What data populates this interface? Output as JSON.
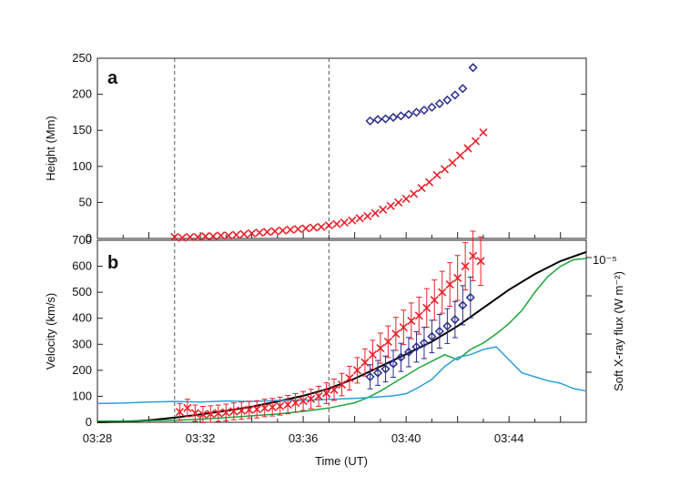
{
  "chart_data": [
    {
      "panel": "a",
      "type": "scatter",
      "xlabel": "",
      "ylabel": "Height (Mm)",
      "xlim_minutes": [
        0,
        19
      ],
      "ylim": [
        0,
        250
      ],
      "yticks": [
        0,
        50,
        100,
        150,
        200,
        250
      ],
      "vertical_dashed_lines": [
        "03:31",
        "03:37"
      ],
      "series": [
        {
          "marker": "x",
          "color": "#e8202a",
          "time": [
            "03:31.0",
            "03:31.3",
            "03:31.6",
            "03:31.9",
            "03:32.2",
            "03:32.5",
            "03:32.8",
            "03:33.1",
            "03:33.4",
            "03:33.7",
            "03:34.0",
            "03:34.3",
            "03:34.6",
            "03:34.9",
            "03:35.2",
            "03:35.5",
            "03:35.8",
            "03:36.1",
            "03:36.4",
            "03:36.7",
            "03:37.0",
            "03:37.3",
            "03:37.6",
            "03:37.9",
            "03:38.2",
            "03:38.5",
            "03:38.8",
            "03:39.1",
            "03:39.4",
            "03:39.7",
            "03:40.0",
            "03:40.3",
            "03:40.6",
            "03:40.9",
            "03:41.2",
            "03:41.5",
            "03:41.8",
            "03:42.1",
            "03:42.4",
            "03:42.7",
            "03:43.0"
          ],
          "values": [
            2,
            1,
            2,
            2,
            3,
            3,
            4,
            4,
            5,
            6,
            7,
            8,
            9,
            10,
            11,
            12,
            13,
            14,
            15,
            16,
            18,
            20,
            22,
            25,
            28,
            31,
            35,
            40,
            45,
            50,
            55,
            62,
            70,
            78,
            88,
            96,
            105,
            115,
            125,
            135,
            147
          ]
        },
        {
          "marker": "diamond",
          "color": "#2b2e8c",
          "time": [
            "03:38.6",
            "03:38.9",
            "03:39.2",
            "03:39.5",
            "03:39.8",
            "03:40.1",
            "03:40.4",
            "03:40.7",
            "03:41.0",
            "03:41.3",
            "03:41.6",
            "03:41.9",
            "03:42.2",
            "03:42.6"
          ],
          "values": [
            163,
            165,
            166,
            168,
            170,
            172,
            175,
            178,
            182,
            187,
            192,
            199,
            208,
            237
          ]
        }
      ]
    },
    {
      "panel": "b",
      "type": "line",
      "xlabel": "Time (UT)",
      "ylabel": "Velocity (km/s)",
      "ylabel_right": "Soft X-ray flux (W m⁻²)",
      "right_axis_label": "10⁻⁵",
      "xticks": [
        "03:28",
        "03:32",
        "03:36",
        "03:40",
        "03:44"
      ],
      "xlim_minutes": [
        0,
        19
      ],
      "ylim": [
        0,
        700
      ],
      "yticks": [
        0,
        100,
        200,
        300,
        400,
        500,
        600,
        700
      ],
      "vertical_dashed_lines": [
        "03:31",
        "03:37"
      ],
      "series": [
        {
          "kind": "line",
          "color": "#000000",
          "time": [
            "03:28",
            "03:29",
            "03:30",
            "03:31",
            "03:32",
            "03:33",
            "03:34",
            "03:35",
            "03:36",
            "03:37",
            "03:38",
            "03:39",
            "03:40",
            "03:41",
            "03:42",
            "03:43",
            "03:44",
            "03:45",
            "03:46",
            "03:47"
          ],
          "values": [
            0,
            2,
            8,
            18,
            30,
            44,
            60,
            80,
            102,
            130,
            168,
            215,
            262,
            310,
            370,
            440,
            510,
            570,
            620,
            655
          ]
        },
        {
          "kind": "line",
          "color": "#1ca63a",
          "time": [
            "03:28",
            "03:29",
            "03:30",
            "03:31",
            "03:32",
            "03:33",
            "03:34",
            "03:35",
            "03:36",
            "03:37",
            "03:38",
            "03:38.5",
            "03:39",
            "03:39.5",
            "03:40",
            "03:40.5",
            "03:41",
            "03:41.5",
            "03:42",
            "03:42.5",
            "03:43",
            "03:43.5",
            "03:44",
            "03:44.5",
            "03:45",
            "03:45.5",
            "03:46",
            "03:46.5",
            "03:47"
          ],
          "values": [
            5,
            5,
            6,
            8,
            12,
            18,
            25,
            32,
            42,
            55,
            75,
            95,
            120,
            150,
            180,
            210,
            235,
            260,
            240,
            280,
            305,
            340,
            380,
            430,
            500,
            560,
            600,
            625,
            630
          ]
        },
        {
          "kind": "line",
          "color": "#2aa0d8",
          "time": [
            "03:28",
            "03:29",
            "03:30",
            "03:31",
            "03:32",
            "03:33",
            "03:34",
            "03:35",
            "03:36",
            "03:37",
            "03:38",
            "03:38.5",
            "03:39",
            "03:39.5",
            "03:40",
            "03:40.5",
            "03:41",
            "03:41.5",
            "03:42",
            "03:42.5",
            "03:43",
            "03:43.5",
            "03:44",
            "03:44.5",
            "03:45",
            "03:45.5",
            "03:46",
            "03:46.5",
            "03:47"
          ],
          "values": [
            72,
            74,
            78,
            80,
            78,
            82,
            80,
            84,
            85,
            88,
            92,
            95,
            98,
            102,
            110,
            135,
            165,
            215,
            250,
            260,
            280,
            290,
            240,
            190,
            175,
            160,
            150,
            130,
            120
          ]
        },
        {
          "kind": "scatter-errorbar",
          "marker": "x",
          "color": "#e8202a",
          "time": [
            "03:31.2",
            "03:31.5",
            "03:31.8",
            "03:32.1",
            "03:32.4",
            "03:32.7",
            "03:33.0",
            "03:33.3",
            "03:33.6",
            "03:33.9",
            "03:34.2",
            "03:34.5",
            "03:34.8",
            "03:35.1",
            "03:35.4",
            "03:35.7",
            "03:36.0",
            "03:36.3",
            "03:36.6",
            "03:36.9",
            "03:37.2",
            "03:37.5",
            "03:37.8",
            "03:38.1",
            "03:38.4",
            "03:38.7",
            "03:39.0",
            "03:39.3",
            "03:39.6",
            "03:39.9",
            "03:40.2",
            "03:40.5",
            "03:40.8",
            "03:41.1",
            "03:41.4",
            "03:41.7",
            "03:42.0",
            "03:42.3",
            "03:42.6",
            "03:42.9"
          ],
          "values": [
            40,
            55,
            35,
            30,
            32,
            35,
            38,
            42,
            45,
            48,
            50,
            55,
            58,
            62,
            68,
            75,
            82,
            90,
            100,
            112,
            125,
            145,
            170,
            200,
            230,
            260,
            285,
            310,
            340,
            365,
            390,
            410,
            440,
            470,
            500,
            530,
            555,
            600,
            640,
            620
          ]
        },
        {
          "kind": "scatter-errorbar",
          "marker": "diamond",
          "color": "#2b2e8c",
          "time": [
            "03:38.6",
            "03:38.9",
            "03:39.2",
            "03:39.5",
            "03:39.8",
            "03:40.1",
            "03:40.4",
            "03:40.7",
            "03:41.0",
            "03:41.3",
            "03:41.6",
            "03:41.9",
            "03:42.2",
            "03:42.5"
          ],
          "values": [
            175,
            190,
            205,
            225,
            250,
            270,
            290,
            305,
            330,
            350,
            370,
            395,
            450,
            480
          ]
        }
      ]
    }
  ],
  "labels": {
    "panel_a": "a",
    "panel_b": "b"
  }
}
